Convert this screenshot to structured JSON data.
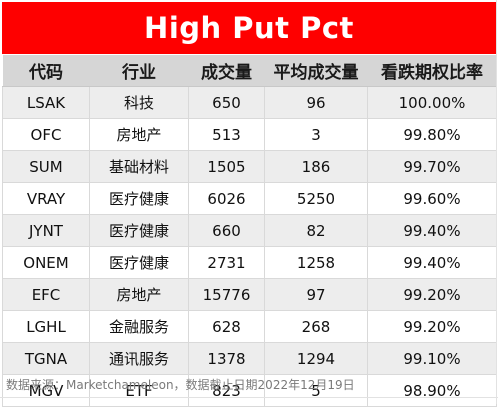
{
  "title": "High Put Pct",
  "table": {
    "headers": [
      "代码",
      "行业",
      "成交量",
      "平均成交量",
      "看跌期权比率"
    ],
    "rows": [
      [
        "LSAK",
        "科技",
        "650",
        "96",
        "100.00%"
      ],
      [
        "OFC",
        "房地产",
        "513",
        "3",
        "99.80%"
      ],
      [
        "SUM",
        "基础材料",
        "1505",
        "186",
        "99.70%"
      ],
      [
        "VRAY",
        "医疗健康",
        "6026",
        "5250",
        "99.60%"
      ],
      [
        "JYNT",
        "医疗健康",
        "660",
        "82",
        "99.40%"
      ],
      [
        "ONEM",
        "医疗健康",
        "2731",
        "1258",
        "99.40%"
      ],
      [
        "EFC",
        "房地产",
        "15776",
        "97",
        "99.20%"
      ],
      [
        "LGHL",
        "金融服务",
        "628",
        "268",
        "99.20%"
      ],
      [
        "TGNA",
        "通讯服务",
        "1378",
        "1294",
        "99.10%"
      ],
      [
        "MGV",
        "ETF",
        "823",
        "5",
        "98.90%"
      ]
    ]
  },
  "footnote": "数据来源：Marketchameleon，数据截止日期2022年12月19日",
  "colors": {
    "title_background": "#fe0000",
    "title_text": "#ffffff",
    "header_background": "#d6d6d6",
    "stripe_background": "#ededed",
    "footnote_text": "#7a7a7a"
  }
}
